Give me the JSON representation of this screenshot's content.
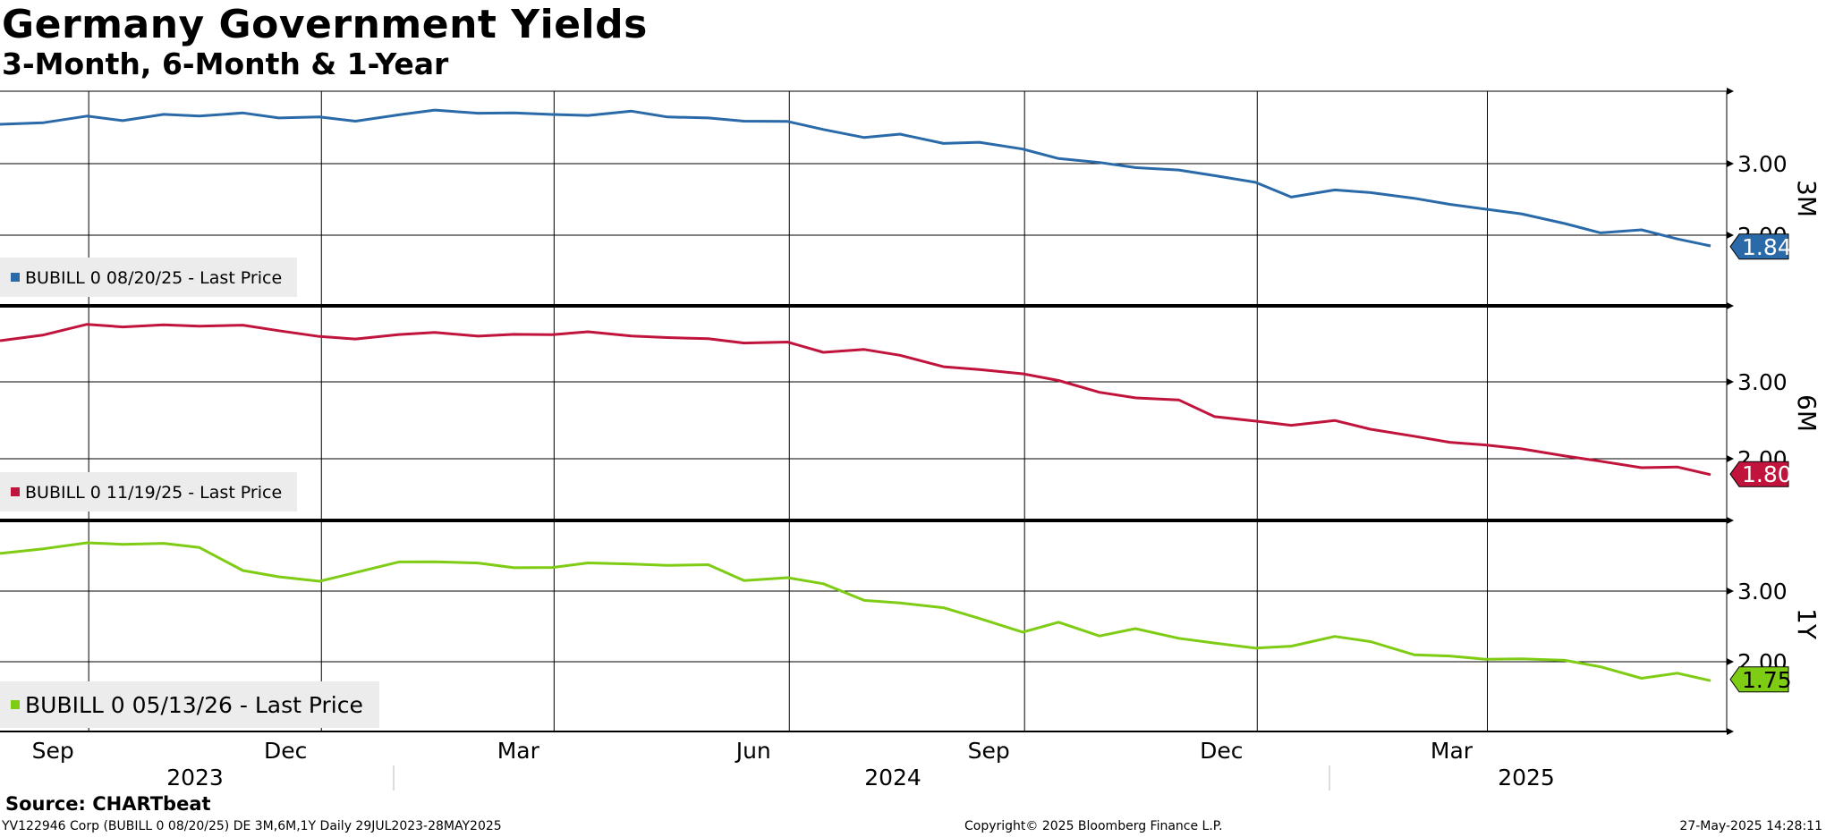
{
  "header": {
    "title": "Germany Government Yields",
    "subtitle": "3-Month, 6-Month & 1-Year"
  },
  "footer": {
    "source": "Source: CHARTbeat",
    "ticker_info": "YV122946 Corp (BUBILL 0 08/20/25) DE 3M,6M,1Y  Daily 29JUL2023-28MAY2025",
    "copyright": "Copyright© 2025 Bloomberg Finance L.P.",
    "timestamp": "27-May-2025 14:28:11"
  },
  "chart_data": [
    {
      "type": "line",
      "panel_label": "3M",
      "legend": "BUBILL 0 08/20/25 - Last Price",
      "color": "#2a6aa8",
      "last_value": "1.84",
      "y_ticks": [
        "3.00",
        "2.00"
      ],
      "ylim": [
        1.5,
        4.0
      ],
      "x_ticks": [
        "Sep",
        "Dec",
        "Mar",
        "Jun",
        "Sep",
        "Dec",
        "Mar"
      ],
      "years": [
        "2023",
        "2024",
        "2025"
      ],
      "x": [
        "2023-07-29",
        "2023-08-15",
        "2023-09-01",
        "2023-09-15",
        "2023-10-01",
        "2023-10-15",
        "2023-11-01",
        "2023-11-15",
        "2023-12-01",
        "2023-12-15",
        "2024-01-01",
        "2024-01-15",
        "2024-02-01",
        "2024-02-15",
        "2024-03-01",
        "2024-03-15",
        "2024-04-01",
        "2024-04-15",
        "2024-05-01",
        "2024-05-15",
        "2024-06-01",
        "2024-06-15",
        "2024-07-01",
        "2024-07-15",
        "2024-08-01",
        "2024-08-15",
        "2024-09-01",
        "2024-09-15",
        "2024-10-01",
        "2024-10-15",
        "2024-11-01",
        "2024-11-15",
        "2024-12-01",
        "2024-12-15",
        "2025-01-01",
        "2025-01-15",
        "2025-02-01",
        "2025-02-15",
        "2025-03-01",
        "2025-03-15",
        "2025-04-01",
        "2025-04-15",
        "2025-05-01",
        "2025-05-15",
        "2025-05-28"
      ],
      "values": [
        3.55,
        3.58,
        3.65,
        3.62,
        3.67,
        3.68,
        3.7,
        3.64,
        3.66,
        3.58,
        3.7,
        3.73,
        3.72,
        3.7,
        3.69,
        3.68,
        3.72,
        3.67,
        3.62,
        3.61,
        3.58,
        3.48,
        3.37,
        3.4,
        3.3,
        3.28,
        3.22,
        3.06,
        3.02,
        2.95,
        2.9,
        2.85,
        2.72,
        2.55,
        2.62,
        2.6,
        2.52,
        2.42,
        2.38,
        2.28,
        2.18,
        2.02,
        2.08,
        1.95,
        1.84
      ]
    },
    {
      "type": "line",
      "panel_label": "6M",
      "legend": "BUBILL 0 11/19/25 - Last Price",
      "color": "#c0143c",
      "last_value": "1.80",
      "y_ticks": [
        "3.00",
        "2.00"
      ],
      "ylim": [
        1.5,
        4.0
      ],
      "x": [
        "2023-07-29",
        "2023-08-15",
        "2023-09-01",
        "2023-09-15",
        "2023-10-01",
        "2023-10-15",
        "2023-11-01",
        "2023-11-15",
        "2023-12-01",
        "2023-12-15",
        "2024-01-01",
        "2024-01-15",
        "2024-02-01",
        "2024-02-15",
        "2024-03-01",
        "2024-03-15",
        "2024-04-01",
        "2024-04-15",
        "2024-05-01",
        "2024-05-15",
        "2024-06-01",
        "2024-06-15",
        "2024-07-01",
        "2024-07-15",
        "2024-08-01",
        "2024-08-15",
        "2024-09-01",
        "2024-09-15",
        "2024-10-01",
        "2024-10-15",
        "2024-11-01",
        "2024-11-15",
        "2024-12-01",
        "2024-12-15",
        "2025-01-01",
        "2025-01-15",
        "2025-02-01",
        "2025-02-15",
        "2025-03-01",
        "2025-03-15",
        "2025-04-01",
        "2025-04-15",
        "2025-05-01",
        "2025-05-15",
        "2025-05-28"
      ],
      "values": [
        3.55,
        3.6,
        3.75,
        3.72,
        3.73,
        3.74,
        3.72,
        3.68,
        3.58,
        3.56,
        3.62,
        3.63,
        3.61,
        3.6,
        3.63,
        3.64,
        3.6,
        3.58,
        3.55,
        3.52,
        3.5,
        3.4,
        3.41,
        3.35,
        3.2,
        3.15,
        3.12,
        3.0,
        2.88,
        2.78,
        2.77,
        2.55,
        2.48,
        2.45,
        2.48,
        2.4,
        2.28,
        2.22,
        2.18,
        2.12,
        2.05,
        1.95,
        1.9,
        1.88,
        1.8
      ]
    },
    {
      "type": "line",
      "panel_label": "1Y",
      "legend": "BUBILL 0 05/13/26 - Last Price",
      "color": "#7fcc14",
      "last_value": "1.75",
      "y_ticks": [
        "3.00",
        "2.00"
      ],
      "ylim": [
        1.0,
        4.0
      ],
      "x": [
        "2023-07-29",
        "2023-08-15",
        "2023-09-01",
        "2023-09-15",
        "2023-10-01",
        "2023-10-15",
        "2023-11-01",
        "2023-11-15",
        "2023-12-01",
        "2023-12-15",
        "2024-01-01",
        "2024-01-15",
        "2024-02-01",
        "2024-02-15",
        "2024-03-01",
        "2024-03-15",
        "2024-04-01",
        "2024-04-15",
        "2024-05-01",
        "2024-05-15",
        "2024-06-01",
        "2024-06-15",
        "2024-07-01",
        "2024-07-15",
        "2024-08-01",
        "2024-08-15",
        "2024-09-01",
        "2024-09-15",
        "2024-10-01",
        "2024-10-15",
        "2024-11-01",
        "2024-11-15",
        "2024-12-01",
        "2024-12-15",
        "2025-01-01",
        "2025-01-15",
        "2025-02-01",
        "2025-02-15",
        "2025-03-01",
        "2025-03-15",
        "2025-04-01",
        "2025-04-15",
        "2025-05-01",
        "2025-05-15",
        "2025-05-28"
      ],
      "values": [
        3.55,
        3.58,
        3.7,
        3.65,
        3.68,
        3.62,
        3.28,
        3.22,
        3.12,
        3.28,
        3.4,
        3.42,
        3.4,
        3.32,
        3.35,
        3.38,
        3.4,
        3.35,
        3.38,
        3.15,
        3.18,
        3.12,
        2.85,
        2.85,
        2.75,
        2.62,
        2.42,
        2.55,
        2.38,
        2.45,
        2.35,
        2.25,
        2.2,
        2.22,
        2.35,
        2.3,
        2.08,
        2.1,
        2.02,
        2.05,
        2.02,
        1.92,
        1.78,
        1.82,
        1.75
      ]
    }
  ]
}
